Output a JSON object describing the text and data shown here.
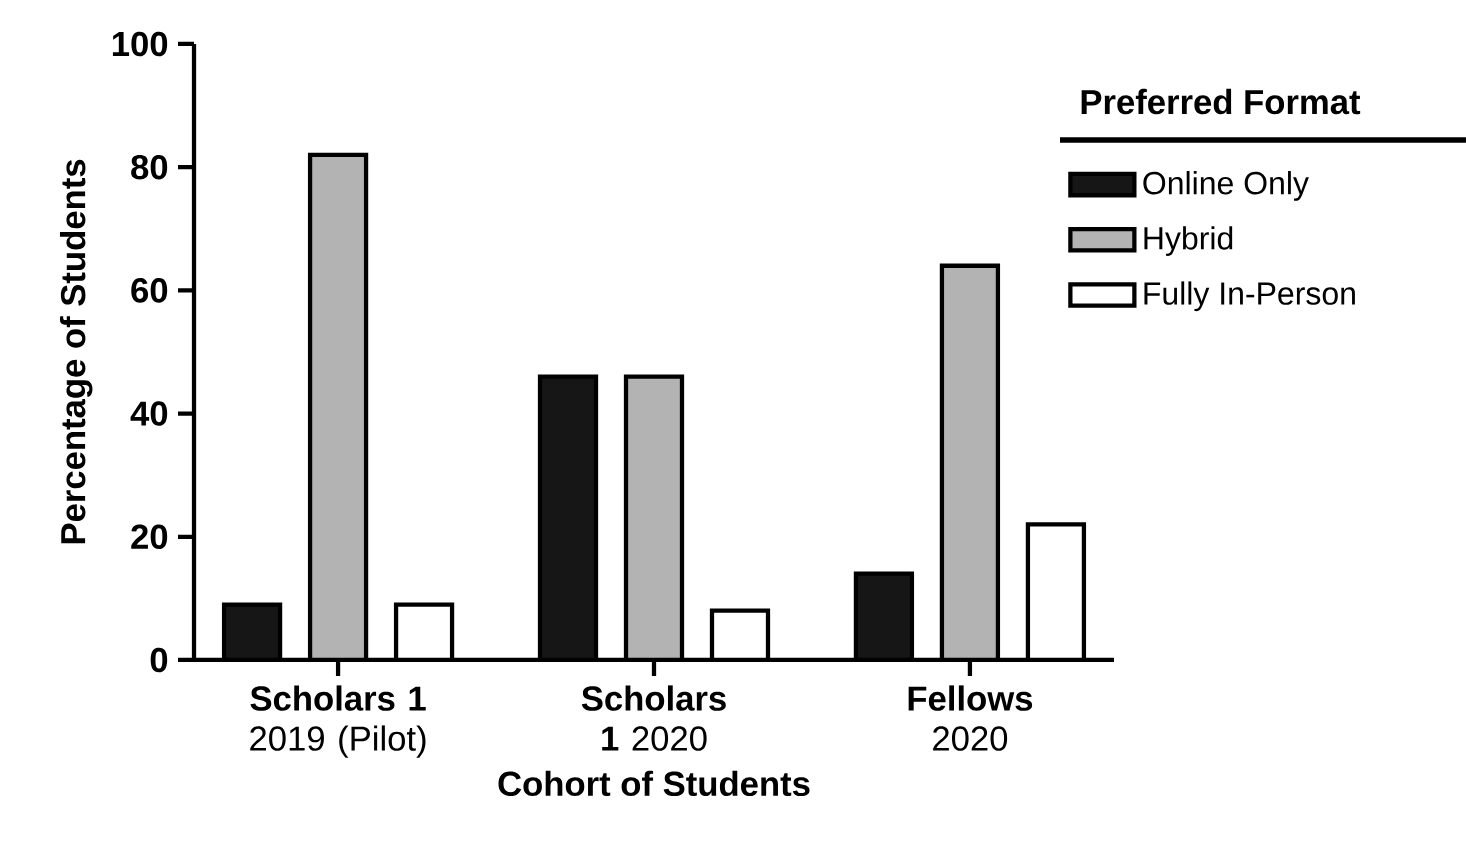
{
  "chart_data": {
    "type": "bar",
    "categories": [
      "**Scholars 1** 2019 (Pilot)",
      "**Scholars 1** 2020",
      "**Fellows** 2020"
    ],
    "series": [
      {
        "name": "Online Only",
        "color": "#161616",
        "values": [
          9,
          46,
          14
        ]
      },
      {
        "name": "Hybrid",
        "color": "#b3b3b3",
        "values": [
          82,
          46,
          64
        ]
      },
      {
        "name": "Fully In-Person",
        "color": "#ffffff",
        "values": [
          9,
          8,
          22
        ]
      }
    ],
    "xlabel": "Cohort of Students",
    "ylabel": "Percentage of Students",
    "legend_title": "Preferred Format",
    "legend": "top right",
    "ylim": [
      0,
      100
    ],
    "yticks": [
      0,
      20,
      40,
      60,
      80,
      100
    ],
    "grid": false
  }
}
